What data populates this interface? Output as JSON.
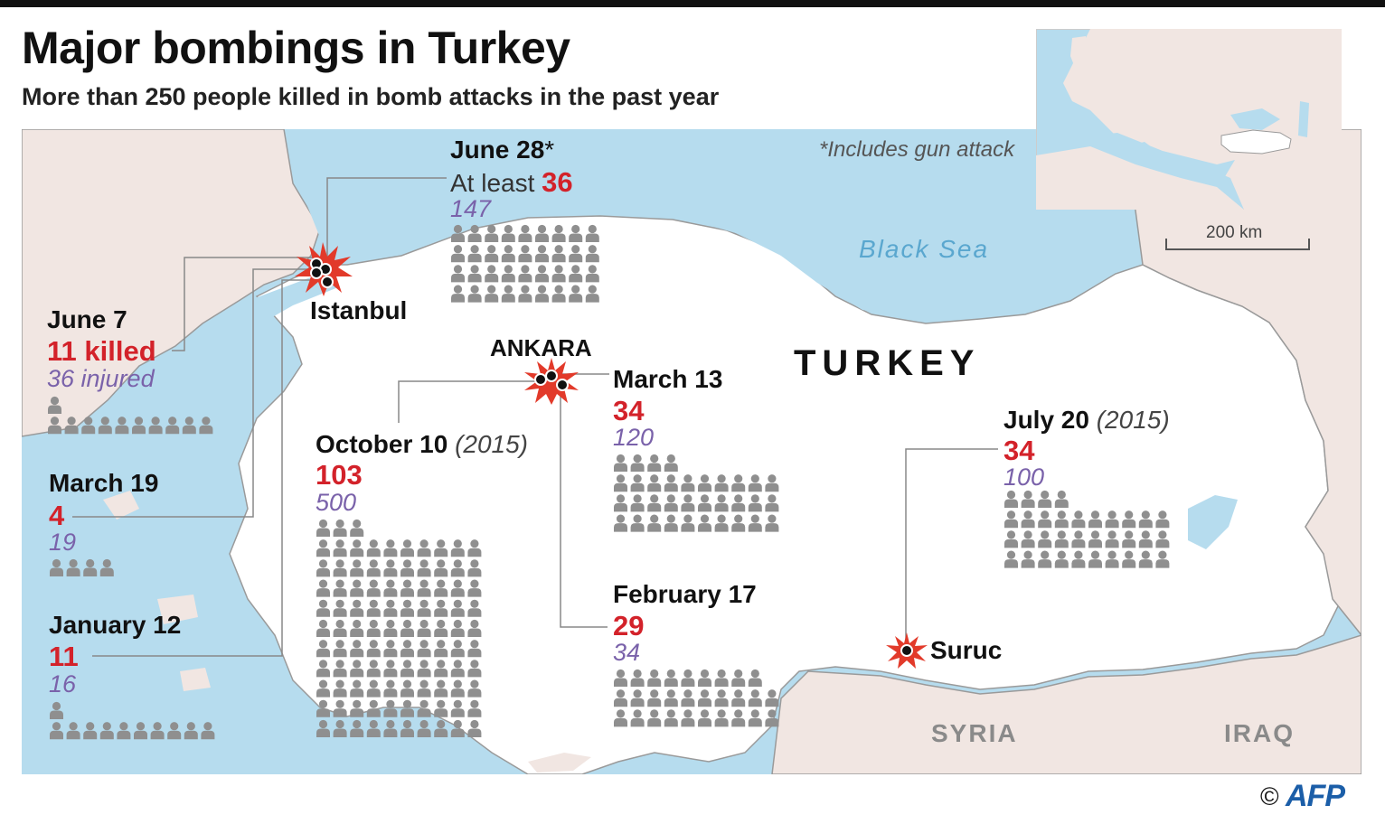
{
  "header": {
    "title": "Major bombings in Turkey",
    "subtitle": "More than 250 people killed in bomb attacks in the past year",
    "note": "*Includes gun attack"
  },
  "map": {
    "sea_label": "Black Sea",
    "country_label": "TURKEY",
    "neighbors": [
      "SYRIA",
      "IRAQ"
    ],
    "scale_label": "200 km",
    "colors": {
      "sea": "#b6dcee",
      "land_turkey": "#ffffff",
      "land_other": "#f1e6e2",
      "border": "#9a9a9a",
      "killed": "#d3222a",
      "injured": "#7a62aa",
      "blast": "#e23a2a"
    }
  },
  "cities": {
    "istanbul": "Istanbul",
    "ankara": "ANKARA",
    "suruc": "Suruc"
  },
  "attacks": [
    {
      "id": "june28",
      "date": "June 28",
      "star": "*",
      "year": "",
      "killed_prefix": "At least ",
      "killed": "36",
      "injured": "147",
      "city": "Istanbul"
    },
    {
      "id": "june7",
      "date": "June 7",
      "star": "",
      "year": "",
      "killed_prefix": "",
      "killed": "11 killed",
      "injured": "36 injured",
      "city": "Istanbul"
    },
    {
      "id": "march19",
      "date": "March 19",
      "star": "",
      "year": "",
      "killed_prefix": "",
      "killed": "4",
      "injured": "19",
      "city": "Istanbul"
    },
    {
      "id": "january12",
      "date": "January 12",
      "star": "",
      "year": "",
      "killed_prefix": "",
      "killed": "11",
      "injured": "16",
      "city": "Istanbul"
    },
    {
      "id": "october10",
      "date": "October 10 ",
      "star": "",
      "year": "(2015)",
      "killed_prefix": "",
      "killed": "103",
      "injured": "500",
      "city": "ANKARA"
    },
    {
      "id": "march13",
      "date": "March 13",
      "star": "",
      "year": "",
      "killed_prefix": "",
      "killed": "34",
      "injured": "120",
      "city": "ANKARA"
    },
    {
      "id": "february17",
      "date": "February 17",
      "star": "",
      "year": "",
      "killed_prefix": "",
      "killed": "29",
      "injured": "34",
      "city": "ANKARA"
    },
    {
      "id": "july20",
      "date": "July 20 ",
      "star": "",
      "year": "(2015)",
      "killed_prefix": "",
      "killed": "34",
      "injured": "100",
      "city": "Suruc"
    }
  ],
  "credit": {
    "copyright": "©",
    "agency": "AFP"
  }
}
